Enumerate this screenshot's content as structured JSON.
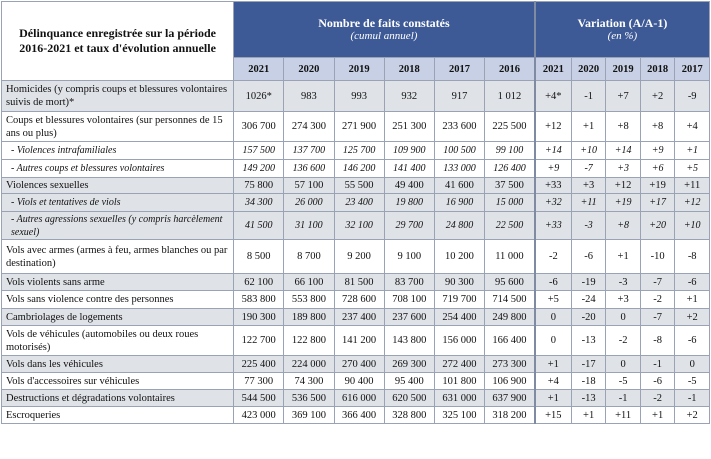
{
  "header": {
    "title": "Délinquance enregistrée sur la période 2016-2021 et taux d'évolution annuelle",
    "group_counts": "Nombre de faits constatés",
    "group_counts_sub": "(cumul annuel)",
    "group_var": "Variation (A/A-1)",
    "group_var_sub": "(en %)",
    "count_years": [
      "2021",
      "2020",
      "2019",
      "2018",
      "2017",
      "2016"
    ],
    "var_years": [
      "2021",
      "2020",
      "2019",
      "2018",
      "2017"
    ]
  },
  "rows": [
    {
      "label": "Homicides (y compris coups et blessures volontaires suivis de mort)*",
      "counts": [
        "1026*",
        "983",
        "993",
        "932",
        "917",
        "1 012"
      ],
      "vars": [
        "+4*",
        "-1",
        "+7",
        "+2",
        "-9"
      ]
    },
    {
      "label": "Coups et blessures volontaires (sur personnes de 15 ans ou plus)",
      "counts": [
        "306 700",
        "274 300",
        "271 900",
        "251 300",
        "233 600",
        "225 500"
      ],
      "vars": [
        "+12",
        "+1",
        "+8",
        "+8",
        "+4"
      ]
    },
    {
      "label": "- Violences intrafamiliales",
      "counts": [
        "157 500",
        "137 700",
        "125 700",
        "109 900",
        "100 500",
        "99 100"
      ],
      "vars": [
        "+14",
        "+10",
        "+14",
        "+9",
        "+1"
      ]
    },
    {
      "label": "- Autres coups et blessures volontaires",
      "counts": [
        "149 200",
        "136 600",
        "146 200",
        "141 400",
        "133 000",
        "126 400"
      ],
      "vars": [
        "+9",
        "-7",
        "+3",
        "+6",
        "+5"
      ]
    },
    {
      "label": "Violences sexuelles",
      "counts": [
        "75 800",
        "57 100",
        "55 500",
        "49 400",
        "41 600",
        "37 500"
      ],
      "vars": [
        "+33",
        "+3",
        "+12",
        "+19",
        "+11"
      ]
    },
    {
      "label": "- Viols et tentatives de viols",
      "counts": [
        "34 300",
        "26 000",
        "23 400",
        "19 800",
        "16 900",
        "15 000"
      ],
      "vars": [
        "+32",
        "+11",
        "+19",
        "+17",
        "+12"
      ]
    },
    {
      "label": "- Autres agressions sexuelles (y compris harcèlement sexuel)",
      "counts": [
        "41 500",
        "31 100",
        "32 100",
        "29 700",
        "24 800",
        "22 500"
      ],
      "vars": [
        "+33",
        "-3",
        "+8",
        "+20",
        "+10"
      ]
    },
    {
      "label": "Vols avec armes (armes à feu, armes blanches ou par destination)",
      "counts": [
        "8 500",
        "8 700",
        "9 200",
        "9 100",
        "10 200",
        "11 000"
      ],
      "vars": [
        "-2",
        "-6",
        "+1",
        "-10",
        "-8"
      ]
    },
    {
      "label": "Vols violents sans arme",
      "counts": [
        "62 100",
        "66 100",
        "81 500",
        "83 700",
        "90 300",
        "95 600"
      ],
      "vars": [
        "-6",
        "-19",
        "-3",
        "-7",
        "-6"
      ]
    },
    {
      "label": "Vols sans violence contre des personnes",
      "counts": [
        "583 800",
        "553 800",
        "728 600",
        "708 100",
        "719 700",
        "714 500"
      ],
      "vars": [
        "+5",
        "-24",
        "+3",
        "-2",
        "+1"
      ]
    },
    {
      "label": "Cambriolages de logements",
      "counts": [
        "190 300",
        "189 800",
        "237 400",
        "237 600",
        "254 400",
        "249 800"
      ],
      "vars": [
        "0",
        "-20",
        "0",
        "-7",
        "+2"
      ]
    },
    {
      "label": "Vols de véhicules (automobiles ou deux roues motorisés)",
      "counts": [
        "122 700",
        "122 800",
        "141 200",
        "143 800",
        "156 000",
        "166 400"
      ],
      "vars": [
        "0",
        "-13",
        "-2",
        "-8",
        "-6"
      ]
    },
    {
      "label": "Vols dans les véhicules",
      "counts": [
        "225 400",
        "224 000",
        "270 400",
        "269 300",
        "272 400",
        "273 300"
      ],
      "vars": [
        "+1",
        "-17",
        "0",
        "-1",
        "0"
      ]
    },
    {
      "label": "Vols d'accessoires sur véhicules",
      "counts": [
        "77 300",
        "74 300",
        "90 400",
        "95 400",
        "101 800",
        "106 900"
      ],
      "vars": [
        "+4",
        "-18",
        "-5",
        "-6",
        "-5"
      ]
    },
    {
      "label": "Destructions et dégradations volontaires",
      "counts": [
        "544 500",
        "536 500",
        "616 000",
        "620 500",
        "631 000",
        "637 900"
      ],
      "vars": [
        "+1",
        "-13",
        "-1",
        "-2",
        "-1"
      ]
    },
    {
      "label": "Escroqueries",
      "counts": [
        "423 000",
        "369 100",
        "366 400",
        "328 800",
        "325 100",
        "318 200"
      ],
      "vars": [
        "+15",
        "+1",
        "+11",
        "+1",
        "+2"
      ]
    }
  ]
}
